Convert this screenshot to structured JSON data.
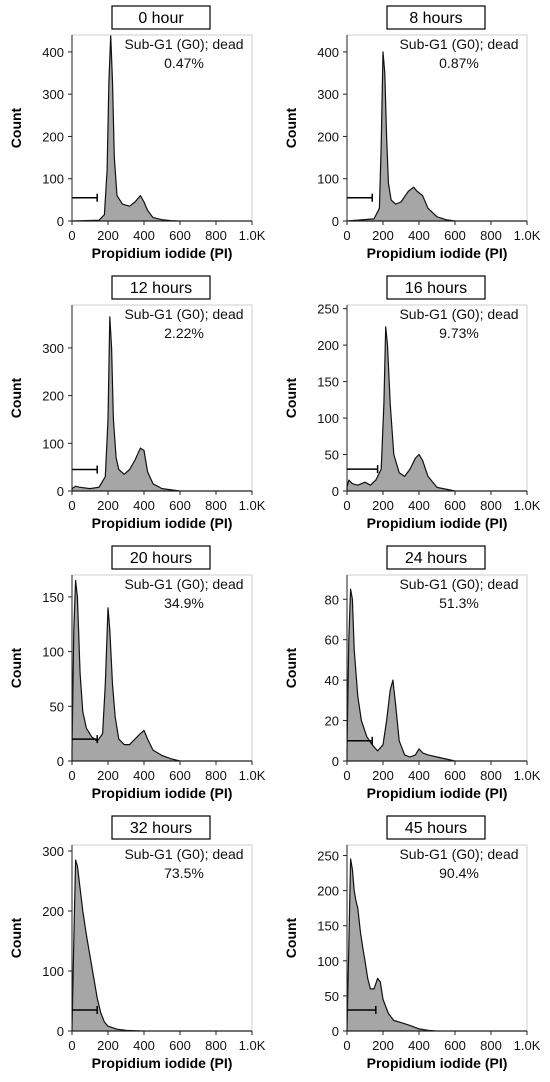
{
  "chart_data": [
    {
      "type": "area",
      "title": "0 hour",
      "gate_label": "Sub-G1 (G0); dead",
      "gate_value": "0.47%",
      "xlabel": "Propidium iodide (PI)",
      "ylabel": "Count",
      "xlim": [
        0,
        1000
      ],
      "ylim": [
        0,
        440
      ],
      "xticks": [
        0,
        200,
        400,
        600,
        800,
        1000
      ],
      "xticklabels": [
        "0",
        "200",
        "400",
        "600",
        "800",
        "1.0K"
      ],
      "yticks": [
        0,
        100,
        200,
        300,
        400
      ],
      "yticklabels": [
        "0",
        "100",
        "200",
        "300",
        "400"
      ],
      "gate": {
        "x0": 0,
        "x1": 140,
        "y": 55
      },
      "x": [
        0,
        150,
        180,
        195,
        205,
        215,
        225,
        235,
        250,
        280,
        320,
        350,
        380,
        400,
        420,
        450,
        500,
        550,
        600,
        1000
      ],
      "y": [
        0,
        2,
        15,
        120,
        330,
        440,
        330,
        150,
        60,
        40,
        35,
        45,
        60,
        45,
        25,
        8,
        3,
        1,
        0,
        0
      ]
    },
    {
      "type": "area",
      "title": "8 hours",
      "gate_label": "Sub-G1 (G0); dead",
      "gate_value": "0.87%",
      "xlabel": "Propidium iodide (PI)",
      "ylabel": "Count",
      "xlim": [
        0,
        1000
      ],
      "ylim": [
        0,
        440
      ],
      "xticks": [
        0,
        200,
        400,
        600,
        800,
        1000
      ],
      "xticklabels": [
        "0",
        "200",
        "400",
        "600",
        "800",
        "1.0K"
      ],
      "yticks": [
        0,
        100,
        200,
        300,
        400
      ],
      "yticklabels": [
        "0",
        "100",
        "200",
        "300",
        "400"
      ],
      "gate": {
        "x0": 0,
        "x1": 140,
        "y": 55
      },
      "x": [
        0,
        150,
        180,
        190,
        200,
        210,
        220,
        230,
        245,
        270,
        300,
        340,
        370,
        390,
        420,
        450,
        500,
        550,
        600,
        1000
      ],
      "y": [
        0,
        5,
        30,
        180,
        400,
        350,
        200,
        90,
        50,
        40,
        45,
        70,
        80,
        70,
        60,
        30,
        10,
        3,
        0,
        0
      ]
    },
    {
      "type": "area",
      "title": "12 hours",
      "gate_label": "Sub-G1 (G0); dead",
      "gate_value": "2.22%",
      "xlabel": "Propidium iodide (PI)",
      "ylabel": "Count",
      "xlim": [
        0,
        1000
      ],
      "ylim": [
        0,
        390
      ],
      "xticks": [
        0,
        200,
        400,
        600,
        800,
        1000
      ],
      "xticklabels": [
        "0",
        "200",
        "400",
        "600",
        "800",
        "1.0K"
      ],
      "yticks": [
        0,
        100,
        200,
        300
      ],
      "yticklabels": [
        "0",
        "100",
        "200",
        "300"
      ],
      "gate": {
        "x0": 0,
        "x1": 140,
        "y": 45
      },
      "x": [
        0,
        20,
        40,
        100,
        150,
        185,
        200,
        210,
        220,
        230,
        245,
        260,
        290,
        320,
        350,
        380,
        400,
        420,
        450,
        500,
        600,
        1000
      ],
      "y": [
        5,
        10,
        8,
        5,
        8,
        30,
        150,
        365,
        300,
        150,
        70,
        45,
        35,
        45,
        65,
        90,
        85,
        40,
        15,
        5,
        0,
        0
      ]
    },
    {
      "type": "area",
      "title": "16 hours",
      "gate_label": "Sub-G1 (G0); dead",
      "gate_value": "9.73%",
      "xlabel": "Propidium iodide (PI)",
      "ylabel": "Count",
      "xlim": [
        0,
        1000
      ],
      "ylim": [
        0,
        255
      ],
      "xticks": [
        0,
        200,
        400,
        600,
        800,
        1000
      ],
      "xticklabels": [
        "0",
        "200",
        "400",
        "600",
        "800",
        "1.0K"
      ],
      "yticks": [
        0,
        50,
        100,
        150,
        200,
        250
      ],
      "yticklabels": [
        "0",
        "50",
        "100",
        "150",
        "200",
        "250"
      ],
      "gate": {
        "x0": 0,
        "x1": 170,
        "y": 30
      },
      "x": [
        0,
        10,
        30,
        60,
        100,
        130,
        160,
        190,
        205,
        215,
        225,
        240,
        260,
        290,
        320,
        350,
        380,
        400,
        420,
        450,
        500,
        600,
        1000
      ],
      "y": [
        5,
        15,
        10,
        8,
        12,
        8,
        15,
        30,
        120,
        225,
        200,
        120,
        50,
        25,
        20,
        30,
        45,
        50,
        42,
        20,
        5,
        0,
        0
      ]
    },
    {
      "type": "area",
      "title": "20 hours",
      "gate_label": "Sub-G1 (G0); dead",
      "gate_value": "34.9%",
      "xlabel": "Propidium iodide (PI)",
      "ylabel": "Count",
      "xlim": [
        0,
        1000
      ],
      "ylim": [
        0,
        170
      ],
      "xticks": [
        0,
        200,
        400,
        600,
        800,
        1000
      ],
      "xticklabels": [
        "0",
        "200",
        "400",
        "600",
        "800",
        "1.0K"
      ],
      "yticks": [
        0,
        50,
        100,
        150
      ],
      "yticklabels": [
        "0",
        "50",
        "100",
        "150"
      ],
      "gate": {
        "x0": 0,
        "x1": 140,
        "y": 20
      },
      "x": [
        0,
        10,
        20,
        30,
        45,
        60,
        80,
        110,
        140,
        170,
        185,
        200,
        210,
        225,
        240,
        260,
        290,
        320,
        350,
        380,
        400,
        420,
        450,
        500,
        550,
        600,
        1000
      ],
      "y": [
        10,
        120,
        165,
        150,
        80,
        45,
        30,
        22,
        18,
        25,
        70,
        140,
        120,
        70,
        40,
        20,
        15,
        15,
        20,
        25,
        28,
        20,
        10,
        5,
        2,
        0,
        0
      ]
    },
    {
      "type": "area",
      "title": "24 hours",
      "gate_label": "Sub-G1 (G0); dead",
      "gate_value": "51.3%",
      "xlabel": "Propidium iodide (PI)",
      "ylabel": "Count",
      "xlim": [
        0,
        1000
      ],
      "ylim": [
        0,
        92
      ],
      "xticks": [
        0,
        200,
        400,
        600,
        800,
        1000
      ],
      "xticklabels": [
        "0",
        "200",
        "400",
        "600",
        "800",
        "1.0K"
      ],
      "yticks": [
        0,
        20,
        40,
        60,
        80
      ],
      "yticklabels": [
        "0",
        "20",
        "40",
        "60",
        "80"
      ],
      "gate": {
        "x0": 0,
        "x1": 140,
        "y": 10
      },
      "x": [
        0,
        10,
        20,
        30,
        40,
        60,
        80,
        110,
        140,
        170,
        200,
        220,
        240,
        255,
        270,
        290,
        320,
        350,
        380,
        400,
        420,
        450,
        500,
        550,
        600,
        1000
      ],
      "y": [
        5,
        60,
        85,
        80,
        55,
        32,
        20,
        12,
        8,
        5,
        8,
        20,
        35,
        40,
        28,
        10,
        3,
        2,
        3,
        6,
        4,
        3,
        2,
        1,
        0,
        0
      ]
    },
    {
      "type": "area",
      "title": "32 hours",
      "gate_label": "Sub-G1 (G0); dead",
      "gate_value": "73.5%",
      "xlabel": "Propidium iodide (PI)",
      "ylabel": "Count",
      "xlim": [
        0,
        1000
      ],
      "ylim": [
        0,
        310
      ],
      "xticks": [
        0,
        200,
        400,
        600,
        800,
        1000
      ],
      "xticklabels": [
        "0",
        "200",
        "400",
        "600",
        "800",
        "1.0K"
      ],
      "yticks": [
        0,
        100,
        200,
        300
      ],
      "yticklabels": [
        "0",
        "100",
        "200",
        "300"
      ],
      "gate": {
        "x0": 0,
        "x1": 140,
        "y": 35
      },
      "x": [
        0,
        10,
        20,
        30,
        40,
        60,
        80,
        100,
        120,
        140,
        160,
        180,
        200,
        250,
        300,
        400,
        1000
      ],
      "y": [
        0,
        150,
        285,
        275,
        250,
        200,
        160,
        125,
        90,
        55,
        30,
        15,
        8,
        3,
        1,
        0,
        0
      ]
    },
    {
      "type": "area",
      "title": "45 hours",
      "gate_label": "Sub-G1 (G0); dead",
      "gate_value": "90.4%",
      "xlabel": "Propidium iodide (PI)",
      "ylabel": "Count",
      "xlim": [
        0,
        1000
      ],
      "ylim": [
        0,
        265
      ],
      "xticks": [
        0,
        200,
        400,
        600,
        800,
        1000
      ],
      "xticklabels": [
        "0",
        "200",
        "400",
        "600",
        "800",
        "1.0K"
      ],
      "yticks": [
        0,
        50,
        100,
        150,
        200,
        250
      ],
      "yticklabels": [
        "0",
        "50",
        "100",
        "150",
        "200",
        "250"
      ],
      "gate": {
        "x0": 0,
        "x1": 160,
        "y": 30
      },
      "x": [
        0,
        10,
        20,
        30,
        40,
        50,
        60,
        75,
        90,
        100,
        115,
        130,
        150,
        170,
        185,
        200,
        230,
        260,
        300,
        350,
        400,
        450,
        500,
        1000
      ],
      "y": [
        0,
        120,
        245,
        230,
        200,
        185,
        175,
        140,
        115,
        100,
        75,
        60,
        60,
        75,
        70,
        45,
        25,
        15,
        12,
        8,
        3,
        1,
        0,
        0
      ]
    }
  ]
}
